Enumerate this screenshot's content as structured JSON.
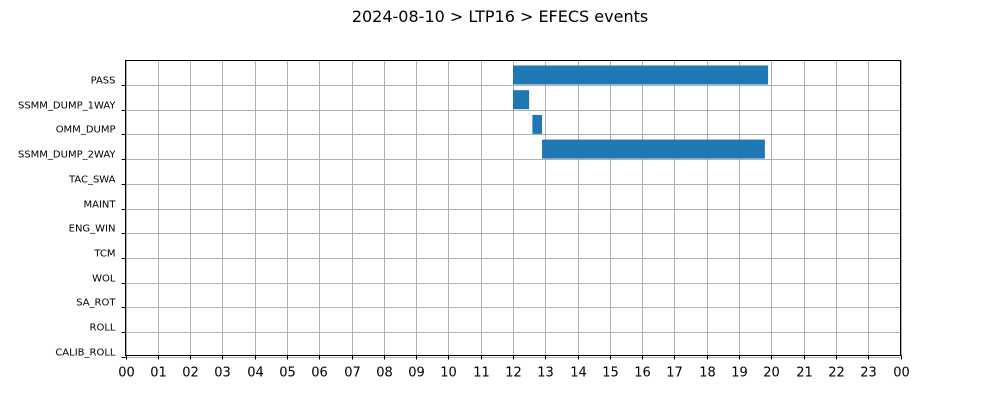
{
  "chart_data": {
    "type": "bar",
    "orientation": "horizontal",
    "title": "2024-08-10 > LTP16 > EFECS events",
    "xlabel": "",
    "ylabel": "",
    "categories": [
      "PASS",
      "SSMM_DUMP_1WAY",
      "OMM_DUMP",
      "SSMM_DUMP_2WAY",
      "TAC_SWA",
      "MAINT",
      "ENG_WIN",
      "TCM",
      "WOL",
      "SA_ROT",
      "ROLL",
      "CALIB_ROLL"
    ],
    "xlim": [
      0,
      24
    ],
    "xtick_labels": [
      "00",
      "01",
      "02",
      "03",
      "04",
      "05",
      "06",
      "07",
      "08",
      "09",
      "10",
      "11",
      "12",
      "13",
      "14",
      "15",
      "16",
      "17",
      "18",
      "19",
      "20",
      "21",
      "22",
      "23",
      "00"
    ],
    "grid": true,
    "bar_color": "#1f77b4",
    "events": [
      {
        "category": "PASS",
        "start": 12.0,
        "end": 19.9
      },
      {
        "category": "SSMM_DUMP_1WAY",
        "start": 12.0,
        "end": 12.5
      },
      {
        "category": "OMM_DUMP",
        "start": 12.6,
        "end": 12.9
      },
      {
        "category": "SSMM_DUMP_2WAY",
        "start": 12.9,
        "end": 19.8
      }
    ]
  }
}
